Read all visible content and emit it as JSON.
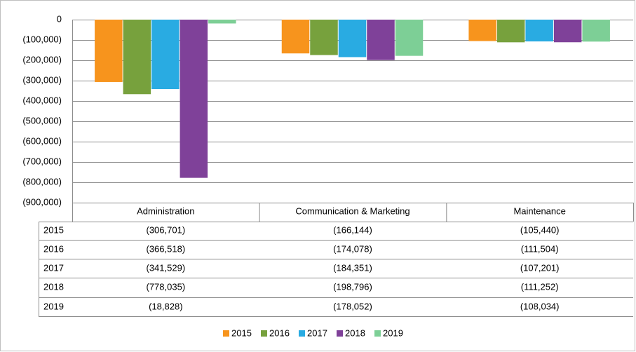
{
  "chart_data": {
    "type": "bar",
    "categories": [
      "Administration",
      "Communication & Marketing",
      "Maintenance"
    ],
    "series": [
      {
        "name": "2015",
        "color": "#f7941d",
        "values": [
          -306701,
          -166144,
          -105440
        ],
        "value_labels": [
          "(306,701)",
          "(166,144)",
          "(105,440)"
        ]
      },
      {
        "name": "2016",
        "color": "#77a13d",
        "values": [
          -366518,
          -174078,
          -111504
        ],
        "value_labels": [
          "(366,518)",
          "(174,078)",
          "(111,504)"
        ]
      },
      {
        "name": "2017",
        "color": "#29abe2",
        "values": [
          -341529,
          -184351,
          -107201
        ],
        "value_labels": [
          "(341,529)",
          "(184,351)",
          "(107,201)"
        ]
      },
      {
        "name": "2018",
        "color": "#7f4199",
        "values": [
          -778035,
          -198796,
          -111252
        ],
        "value_labels": [
          "(778,035)",
          "(198,796)",
          "(111,252)"
        ]
      },
      {
        "name": "2019",
        "color": "#7dcf96",
        "values": [
          -18828,
          -178052,
          -108034
        ],
        "value_labels": [
          "(18,828)",
          "(178,052)",
          "(108,034)"
        ]
      }
    ],
    "ylim": [
      -900000,
      0
    ],
    "yticks": [
      0,
      {
        "value": -100000,
        "label": "(100,000)"
      },
      {
        "value": -200000,
        "label": "(200,000)"
      },
      {
        "value": -300000,
        "label": "(300,000)"
      },
      {
        "value": -400000,
        "label": "(400,000)"
      },
      {
        "value": -500000,
        "label": "(500,000)"
      },
      {
        "value": -600000,
        "label": "(600,000)"
      },
      {
        "value": -700000,
        "label": "(700,000)"
      },
      {
        "value": -800000,
        "label": "(800,000)"
      },
      {
        "value": -900000,
        "label": "(900,000)"
      }
    ],
    "grid": true,
    "legend": "bottom"
  }
}
